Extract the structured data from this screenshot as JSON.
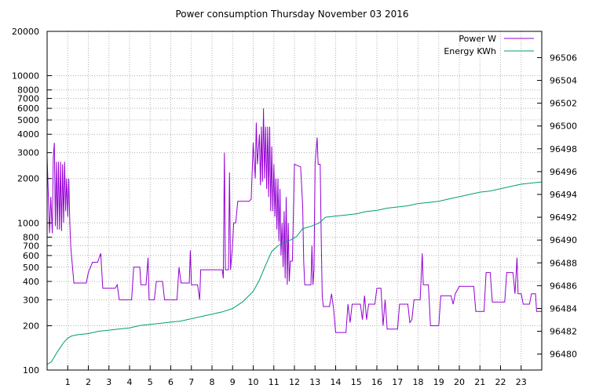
{
  "chart_data": {
    "type": "line",
    "title": "Power consumption Thursday November 03 2016",
    "x": {
      "range": [
        0,
        24
      ],
      "tick_values": [
        1,
        2,
        3,
        4,
        5,
        6,
        7,
        8,
        9,
        10,
        11,
        12,
        13,
        14,
        15,
        16,
        17,
        18,
        19,
        20,
        21,
        22,
        23
      ],
      "tick_labels": [
        "1",
        "2",
        "3",
        "4",
        "5",
        "6",
        "7",
        "8",
        "9",
        "10",
        "11",
        "12",
        "13",
        "14",
        "15",
        "16",
        "17",
        "18",
        "19",
        "20",
        "21",
        "22",
        "23"
      ]
    },
    "y_left": {
      "scale": "log",
      "range": [
        100,
        20000
      ],
      "tick_values": [
        100,
        200,
        300,
        400,
        500,
        600,
        700,
        800,
        1000,
        2000,
        3000,
        4000,
        5000,
        6000,
        7000,
        8000,
        10000,
        20000
      ],
      "tick_labels": [
        "100",
        "200",
        "300",
        "400",
        "500",
        "600",
        "700",
        "800",
        "1000",
        "2000",
        "3000",
        "4000",
        "5000",
        "6000",
        "7000",
        "8000",
        "10000",
        "20000"
      ]
    },
    "y_right": {
      "scale": "linear",
      "range": [
        96478.6,
        96508.3
      ],
      "tick_values": [
        96480,
        96482,
        96484,
        96486,
        96488,
        96490,
        96492,
        96494,
        96496,
        96498,
        96500,
        96502,
        96504,
        96506
      ],
      "tick_labels": [
        "96480",
        "96482",
        "96484",
        "96486",
        "96488",
        "96490",
        "96492",
        "96494",
        "96496",
        "96498",
        "96500",
        "96502",
        "96504",
        "96506"
      ]
    },
    "grid": true,
    "legend": {
      "placement": "top-right"
    },
    "series": [
      {
        "name": "Power W",
        "axis": "left",
        "color": "#9400d3",
        "points": [
          [
            0.0,
            2800
          ],
          [
            0.12,
            850
          ],
          [
            0.18,
            1500
          ],
          [
            0.25,
            850
          ],
          [
            0.3,
            2800
          ],
          [
            0.35,
            3500
          ],
          [
            0.4,
            950
          ],
          [
            0.45,
            2600
          ],
          [
            0.5,
            900
          ],
          [
            0.55,
            2600
          ],
          [
            0.6,
            900
          ],
          [
            0.65,
            2600
          ],
          [
            0.7,
            880
          ],
          [
            0.75,
            2500
          ],
          [
            0.8,
            1000
          ],
          [
            0.85,
            2600
          ],
          [
            0.9,
            1200
          ],
          [
            0.95,
            2000
          ],
          [
            1.0,
            1100
          ],
          [
            1.05,
            2000
          ],
          [
            1.1,
            1000
          ],
          [
            1.15,
            680
          ],
          [
            1.3,
            390
          ],
          [
            1.9,
            390
          ],
          [
            2.0,
            460
          ],
          [
            2.2,
            540
          ],
          [
            2.45,
            540
          ],
          [
            2.6,
            620
          ],
          [
            2.7,
            360
          ],
          [
            3.3,
            360
          ],
          [
            3.4,
            380
          ],
          [
            3.5,
            300
          ],
          [
            4.1,
            300
          ],
          [
            4.2,
            500
          ],
          [
            4.5,
            500
          ],
          [
            4.55,
            380
          ],
          [
            4.8,
            380
          ],
          [
            4.9,
            580
          ],
          [
            4.95,
            300
          ],
          [
            5.2,
            300
          ],
          [
            5.3,
            400
          ],
          [
            5.6,
            400
          ],
          [
            5.7,
            300
          ],
          [
            6.3,
            300
          ],
          [
            6.4,
            500
          ],
          [
            6.5,
            390
          ],
          [
            6.9,
            390
          ],
          [
            6.95,
            650
          ],
          [
            7.0,
            380
          ],
          [
            7.3,
            380
          ],
          [
            7.4,
            300
          ],
          [
            7.45,
            480
          ],
          [
            8.5,
            480
          ],
          [
            8.55,
            420
          ],
          [
            8.6,
            3000
          ],
          [
            8.65,
            480
          ],
          [
            8.8,
            480
          ],
          [
            8.85,
            2200
          ],
          [
            8.9,
            480
          ],
          [
            9.0,
            720
          ],
          [
            9.05,
            1000
          ],
          [
            9.15,
            1000
          ],
          [
            9.25,
            1400
          ],
          [
            9.8,
            1400
          ],
          [
            9.9,
            1450
          ],
          [
            10.0,
            3500
          ],
          [
            10.1,
            2000
          ],
          [
            10.15,
            4800
          ],
          [
            10.2,
            2500
          ],
          [
            10.3,
            4000
          ],
          [
            10.35,
            1800
          ],
          [
            10.4,
            4500
          ],
          [
            10.45,
            1900
          ],
          [
            10.5,
            6000
          ],
          [
            10.55,
            2000
          ],
          [
            10.6,
            4500
          ],
          [
            10.65,
            1700
          ],
          [
            10.7,
            4500
          ],
          [
            10.75,
            1500
          ],
          [
            10.8,
            4500
          ],
          [
            10.85,
            1200
          ],
          [
            10.9,
            3300
          ],
          [
            10.95,
            1200
          ],
          [
            11.0,
            2500
          ],
          [
            11.05,
            1100
          ],
          [
            11.1,
            2000
          ],
          [
            11.15,
            900
          ],
          [
            11.2,
            2000
          ],
          [
            11.25,
            750
          ],
          [
            11.3,
            1700
          ],
          [
            11.35,
            600
          ],
          [
            11.4,
            1000
          ],
          [
            11.45,
            500
          ],
          [
            11.5,
            1200
          ],
          [
            11.55,
            420
          ],
          [
            11.6,
            1500
          ],
          [
            11.65,
            380
          ],
          [
            11.7,
            1000
          ],
          [
            11.75,
            400
          ],
          [
            11.8,
            550
          ],
          [
            11.9,
            550
          ],
          [
            12.0,
            2500
          ],
          [
            12.3,
            2400
          ],
          [
            12.4,
            1300
          ],
          [
            12.45,
            550
          ],
          [
            12.5,
            380
          ],
          [
            12.8,
            380
          ],
          [
            12.85,
            700
          ],
          [
            12.9,
            380
          ],
          [
            12.95,
            480
          ],
          [
            13.0,
            2500
          ],
          [
            13.1,
            3800
          ],
          [
            13.15,
            2500
          ],
          [
            13.25,
            2500
          ],
          [
            13.3,
            800
          ],
          [
            13.35,
            320
          ],
          [
            13.4,
            270
          ],
          [
            13.7,
            270
          ],
          [
            13.8,
            330
          ],
          [
            13.9,
            260
          ],
          [
            14.0,
            180
          ],
          [
            14.5,
            180
          ],
          [
            14.6,
            280
          ],
          [
            14.7,
            210
          ],
          [
            14.8,
            280
          ],
          [
            15.2,
            280
          ],
          [
            15.3,
            220
          ],
          [
            15.4,
            320
          ],
          [
            15.5,
            220
          ],
          [
            15.6,
            280
          ],
          [
            15.9,
            280
          ],
          [
            16.0,
            360
          ],
          [
            16.2,
            360
          ],
          [
            16.3,
            200
          ],
          [
            16.4,
            300
          ],
          [
            16.5,
            190
          ],
          [
            17.0,
            190
          ],
          [
            17.1,
            280
          ],
          [
            17.5,
            280
          ],
          [
            17.6,
            210
          ],
          [
            17.7,
            220
          ],
          [
            17.8,
            300
          ],
          [
            18.1,
            300
          ],
          [
            18.2,
            620
          ],
          [
            18.25,
            380
          ],
          [
            18.5,
            380
          ],
          [
            18.6,
            200
          ],
          [
            19.0,
            200
          ],
          [
            19.1,
            320
          ],
          [
            19.6,
            320
          ],
          [
            19.7,
            280
          ],
          [
            19.8,
            330
          ],
          [
            20.0,
            370
          ],
          [
            20.7,
            370
          ],
          [
            20.8,
            250
          ],
          [
            21.2,
            250
          ],
          [
            21.3,
            460
          ],
          [
            21.5,
            460
          ],
          [
            21.6,
            290
          ],
          [
            22.2,
            290
          ],
          [
            22.3,
            460
          ],
          [
            22.6,
            460
          ],
          [
            22.7,
            330
          ],
          [
            22.8,
            580
          ],
          [
            22.85,
            330
          ],
          [
            23.0,
            330
          ],
          [
            23.1,
            280
          ],
          [
            23.4,
            280
          ],
          [
            23.5,
            330
          ],
          [
            23.7,
            330
          ],
          [
            23.75,
            250
          ],
          [
            24.0,
            250
          ]
        ]
      },
      {
        "name": "Energy KWh",
        "axis": "right",
        "color": "#009e73",
        "points": [
          [
            0.0,
            96479.1
          ],
          [
            0.2,
            96479.3
          ],
          [
            0.5,
            96480.2
          ],
          [
            0.8,
            96481.0
          ],
          [
            1.0,
            96481.4
          ],
          [
            1.2,
            96481.6
          ],
          [
            1.5,
            96481.7
          ],
          [
            2.0,
            96481.8
          ],
          [
            2.5,
            96482.0
          ],
          [
            3.0,
            96482.1
          ],
          [
            3.5,
            96482.2
          ],
          [
            4.0,
            96482.3
          ],
          [
            4.5,
            96482.5
          ],
          [
            5.0,
            96482.6
          ],
          [
            5.5,
            96482.7
          ],
          [
            6.0,
            96482.8
          ],
          [
            6.5,
            96482.9
          ],
          [
            7.0,
            96483.1
          ],
          [
            7.5,
            96483.3
          ],
          [
            8.0,
            96483.5
          ],
          [
            8.5,
            96483.7
          ],
          [
            9.0,
            96484.0
          ],
          [
            9.5,
            96484.6
          ],
          [
            10.0,
            96485.5
          ],
          [
            10.3,
            96486.5
          ],
          [
            10.6,
            96487.8
          ],
          [
            10.9,
            96489.0
          ],
          [
            11.2,
            96489.5
          ],
          [
            11.5,
            96489.8
          ],
          [
            11.8,
            96490.0
          ],
          [
            12.1,
            96490.3
          ],
          [
            12.4,
            96491.0
          ],
          [
            12.8,
            96491.2
          ],
          [
            13.2,
            96491.5
          ],
          [
            13.5,
            96492.0
          ],
          [
            14.0,
            96492.1
          ],
          [
            14.5,
            96492.2
          ],
          [
            15.0,
            96492.3
          ],
          [
            15.5,
            96492.5
          ],
          [
            16.0,
            96492.6
          ],
          [
            16.5,
            96492.8
          ],
          [
            17.0,
            96492.9
          ],
          [
            17.5,
            96493.0
          ],
          [
            18.0,
            96493.2
          ],
          [
            18.5,
            96493.3
          ],
          [
            19.0,
            96493.4
          ],
          [
            19.5,
            96493.6
          ],
          [
            20.0,
            96493.8
          ],
          [
            20.5,
            96494.0
          ],
          [
            21.0,
            96494.2
          ],
          [
            21.5,
            96494.3
          ],
          [
            22.0,
            96494.5
          ],
          [
            22.5,
            96494.7
          ],
          [
            23.0,
            96494.9
          ],
          [
            23.5,
            96495.0
          ],
          [
            24.0,
            96495.1
          ]
        ]
      }
    ]
  }
}
